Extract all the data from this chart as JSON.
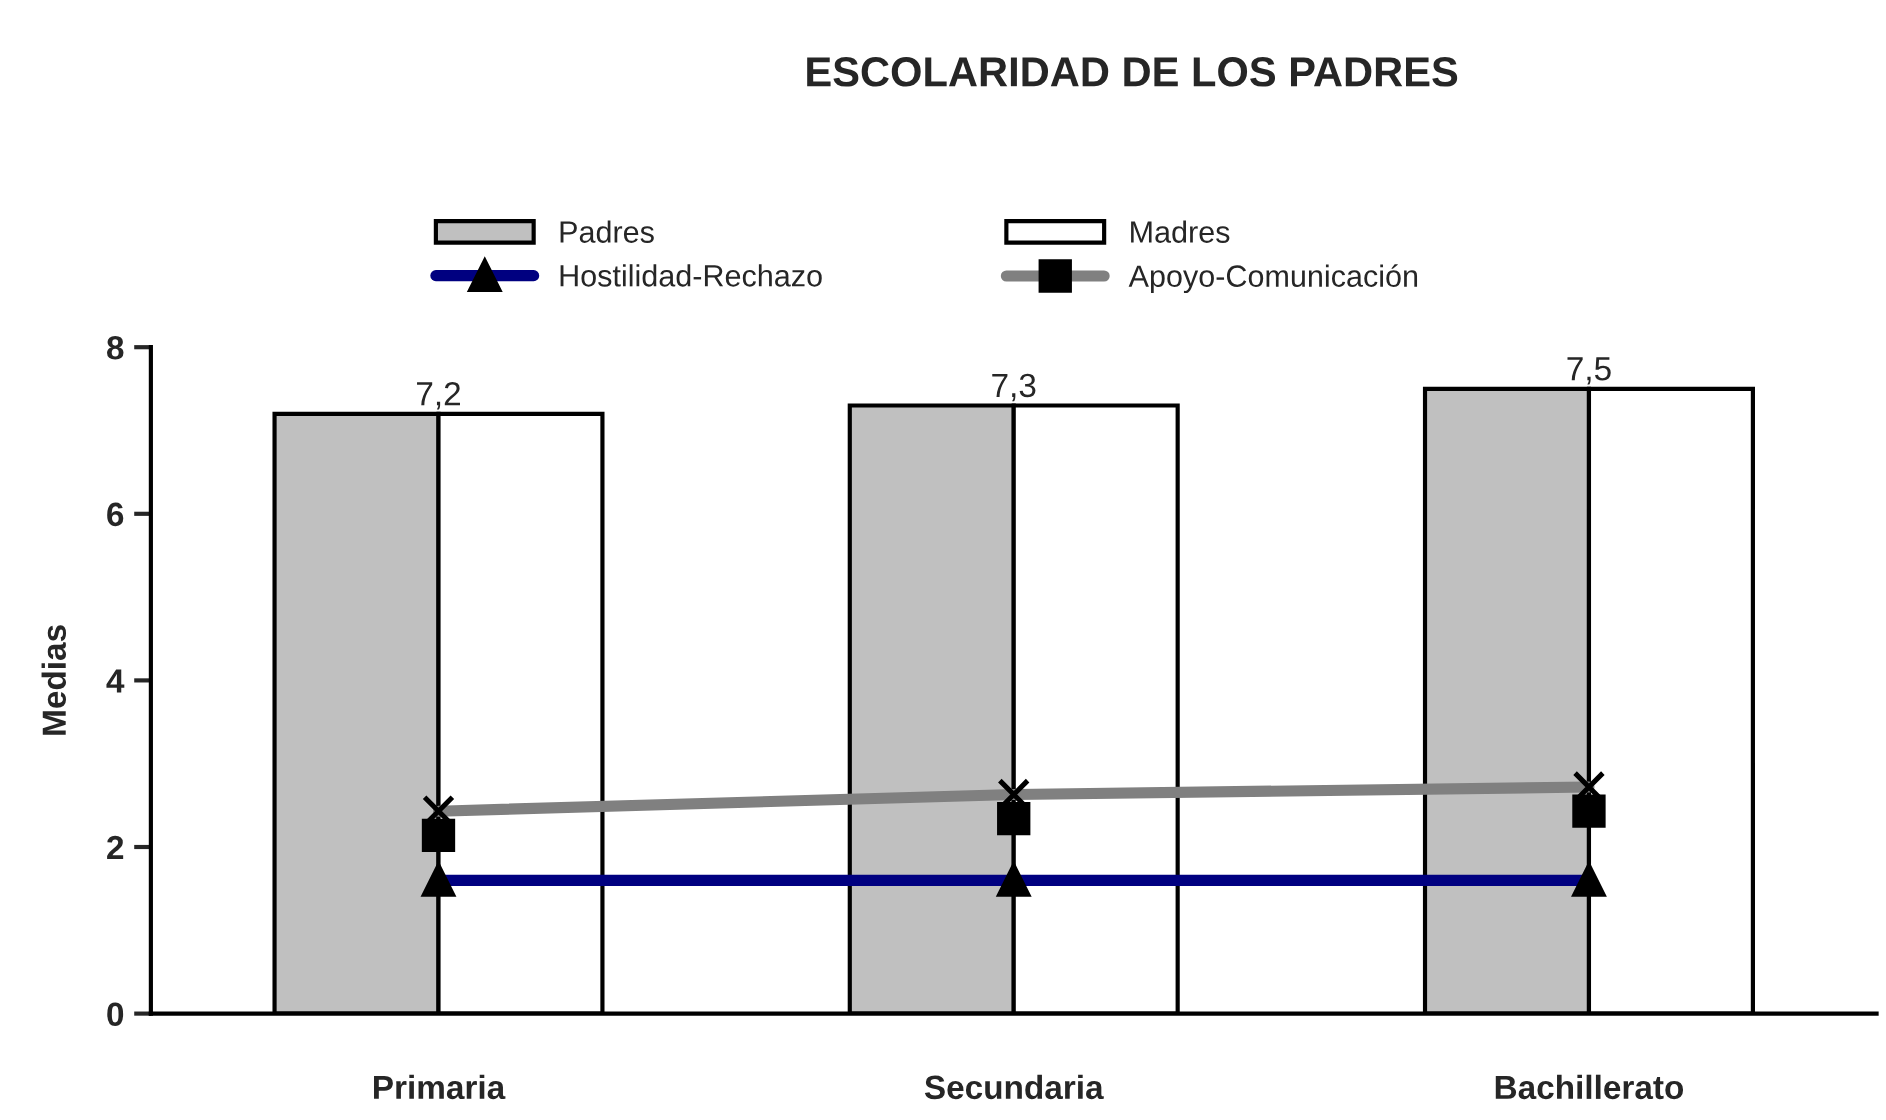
{
  "chart_data": {
    "type": "bar",
    "title": "ESCOLARIDAD DE LOS PADRES",
    "ylabel": "Medias",
    "categories": [
      "Primaria",
      "Secundaria",
      "Bachillerato"
    ],
    "ylim": [
      0,
      8
    ],
    "yticks": [
      0,
      2,
      4,
      6,
      8
    ],
    "grid": false,
    "legend": "top",
    "series": [
      {
        "name": "Padres",
        "color": "#c0c0c0",
        "values": [
          7.2,
          7.3,
          7.5
        ],
        "value_labels": [
          "7,2",
          "7,3",
          "7,5"
        ]
      },
      {
        "name": "Madres",
        "color": "#ffffff",
        "values": [
          7.2,
          7.3,
          7.5
        ]
      },
      {
        "name": "Hostilidad-Rechazo",
        "type": "line",
        "color": "#000080",
        "marker": "triangle",
        "values": [
          1.6,
          1.6,
          1.6
        ]
      },
      {
        "type": "line",
        "color": "#808080",
        "marker": "cross",
        "values": [
          2.43,
          2.63,
          2.72
        ]
      },
      {
        "name": "Apoyo-Comunicación",
        "type": "scatter",
        "color": "#000000",
        "marker": "square",
        "values": [
          2.14,
          2.34,
          2.43
        ]
      }
    ]
  }
}
